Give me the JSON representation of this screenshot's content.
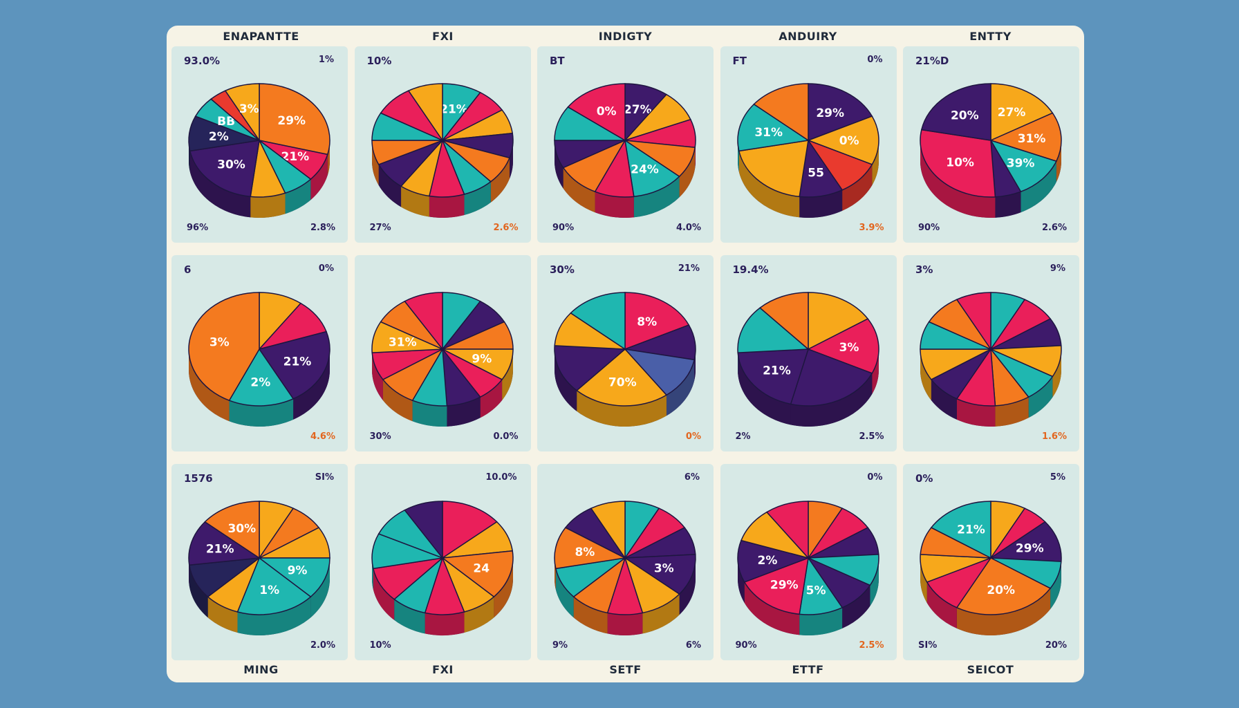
{
  "title_row": [
    "ENAPANTTE",
    "FXI",
    "INDIGTY",
    "ANDUIRY",
    "ENTTY"
  ],
  "footer_row": [
    "MING",
    "FXI",
    "SETF",
    "ETTF",
    "SEICOT"
  ],
  "colors": {
    "background": "#5d94bd",
    "board": "#f6f3e6",
    "panel": "#d7e9e6",
    "orange": "#f47a1f",
    "amber": "#f7a81b",
    "magenta": "#ea1f5a",
    "purple": "#3e1a6b",
    "teal": "#1fb7b0",
    "red": "#e93a2e",
    "navy": "#26245a"
  },
  "chart_data": [
    {
      "type": "pie",
      "title": "ENAPANTTE",
      "top_left": "93.0%",
      "top_right": "1%",
      "bottom_left": "96%",
      "bottom_right": "2.8%",
      "slices": [
        {
          "label": "29%",
          "value": 29,
          "color": "#f47a1f"
        },
        {
          "label": "21%",
          "value": 8,
          "color": "#ea1f5a"
        },
        {
          "label": "",
          "value": 7,
          "color": "#1fb7b0"
        },
        {
          "label": "",
          "value": 8,
          "color": "#f7a81b"
        },
        {
          "label": "30%",
          "value": 20,
          "color": "#3e1a6b"
        },
        {
          "label": "2%",
          "value": 10,
          "color": "#26245a"
        },
        {
          "label": "BB",
          "value": 6,
          "color": "#1fb7b0"
        },
        {
          "label": "",
          "value": 4,
          "color": "#e93a2e"
        },
        {
          "label": "3%",
          "value": 8,
          "color": "#f7a81b"
        }
      ]
    },
    {
      "type": "pie",
      "title": "FXI",
      "top_left": "10%",
      "top_right": "",
      "bottom_left": "27%",
      "bottom_right": "2.6%",
      "slices": [
        {
          "label": "21%",
          "value": 9,
          "color": "#1fb7b0"
        },
        {
          "label": "",
          "value": 7,
          "color": "#ea1f5a"
        },
        {
          "label": "",
          "value": 7,
          "color": "#f7a81b"
        },
        {
          "label": "",
          "value": 7,
          "color": "#3e1a6b"
        },
        {
          "label": "",
          "value": 8,
          "color": "#f47a1f"
        },
        {
          "label": "",
          "value": 7,
          "color": "#1fb7b0"
        },
        {
          "label": "",
          "value": 8,
          "color": "#ea1f5a"
        },
        {
          "label": "",
          "value": 7,
          "color": "#f7a81b"
        },
        {
          "label": "",
          "value": 8,
          "color": "#3e1a6b"
        },
        {
          "label": "",
          "value": 7,
          "color": "#f47a1f"
        },
        {
          "label": "",
          "value": 8,
          "color": "#1fb7b0"
        },
        {
          "label": "",
          "value": 9,
          "color": "#ea1f5a"
        },
        {
          "label": "",
          "value": 8,
          "color": "#f7a81b"
        }
      ]
    },
    {
      "type": "pie",
      "title": "INDIGTY",
      "top_left": "BT",
      "top_right": "",
      "bottom_left": "90%",
      "bottom_right": "4.0%",
      "slices": [
        {
          "label": "27%",
          "value": 10,
          "color": "#3e1a6b"
        },
        {
          "label": "",
          "value": 9,
          "color": "#f7a81b"
        },
        {
          "label": "",
          "value": 8,
          "color": "#ea1f5a"
        },
        {
          "label": "",
          "value": 9,
          "color": "#f47a1f"
        },
        {
          "label": "24%",
          "value": 12,
          "color": "#1fb7b0"
        },
        {
          "label": "",
          "value": 9,
          "color": "#ea1f5a"
        },
        {
          "label": "",
          "value": 10,
          "color": "#f47a1f"
        },
        {
          "label": "",
          "value": 8,
          "color": "#3e1a6b"
        },
        {
          "label": "",
          "value": 10,
          "color": "#1fb7b0"
        },
        {
          "label": "0%",
          "value": 15,
          "color": "#ea1f5a"
        }
      ]
    },
    {
      "type": "pie",
      "title": "ANDUIRY",
      "top_left": "FT",
      "top_right": "0%",
      "bottom_left": "",
      "bottom_right": "3.9%",
      "slices": [
        {
          "label": "29%",
          "value": 18,
          "color": "#3e1a6b"
        },
        {
          "label": "0%",
          "value": 14,
          "color": "#f7a81b"
        },
        {
          "label": "",
          "value": 10,
          "color": "#e93a2e"
        },
        {
          "label": "55",
          "value": 10,
          "color": "#3e1a6b"
        },
        {
          "label": "",
          "value": 20,
          "color": "#f7a81b"
        },
        {
          "label": "31%",
          "value": 14,
          "color": "#1fb7b0"
        },
        {
          "label": "",
          "value": 14,
          "color": "#f47a1f"
        }
      ]
    },
    {
      "type": "pie",
      "title": "ENTTY",
      "top_left": "21%D",
      "top_right": "",
      "bottom_left": "90%",
      "bottom_right": "2.6%",
      "slices": [
        {
          "label": "27%",
          "value": 17,
          "color": "#f7a81b"
        },
        {
          "label": "31%",
          "value": 14,
          "color": "#f47a1f"
        },
        {
          "label": "39%",
          "value": 12,
          "color": "#1fb7b0"
        },
        {
          "label": "",
          "value": 6,
          "color": "#3e1a6b"
        },
        {
          "label": "10%",
          "value": 29,
          "color": "#ea1f5a"
        },
        {
          "label": "20%",
          "value": 22,
          "color": "#3e1a6b"
        }
      ]
    },
    {
      "type": "pie",
      "title": "",
      "top_left": "6",
      "top_right": "0%",
      "bottom_left": "",
      "bottom_right": "4.6%",
      "slices": [
        {
          "label": "",
          "value": 10,
          "color": "#f7a81b"
        },
        {
          "label": "",
          "value": 10,
          "color": "#ea1f5a"
        },
        {
          "label": "21%",
          "value": 22,
          "color": "#3e1a6b"
        },
        {
          "label": "2%",
          "value": 15,
          "color": "#1fb7b0"
        },
        {
          "label": "3%",
          "value": 43,
          "color": "#f47a1f"
        }
      ]
    },
    {
      "type": "pie",
      "title": "",
      "top_left": "",
      "top_right": "",
      "bottom_left": "30%",
      "bottom_right": "0.0%",
      "slices": [
        {
          "label": "",
          "value": 9,
          "color": "#1fb7b0"
        },
        {
          "label": "",
          "value": 8,
          "color": "#3e1a6b"
        },
        {
          "label": "",
          "value": 8,
          "color": "#f47a1f"
        },
        {
          "label": "9%",
          "value": 9,
          "color": "#f7a81b"
        },
        {
          "label": "",
          "value": 7,
          "color": "#ea1f5a"
        },
        {
          "label": "",
          "value": 8,
          "color": "#3e1a6b"
        },
        {
          "label": "",
          "value": 8,
          "color": "#1fb7b0"
        },
        {
          "label": "",
          "value": 9,
          "color": "#f47a1f"
        },
        {
          "label": "",
          "value": 8,
          "color": "#ea1f5a"
        },
        {
          "label": "31%",
          "value": 9,
          "color": "#f7a81b"
        },
        {
          "label": "",
          "value": 8,
          "color": "#f47a1f"
        },
        {
          "label": "",
          "value": 9,
          "color": "#ea1f5a"
        }
      ]
    },
    {
      "type": "pie",
      "title": "",
      "top_left": "30%",
      "top_right": "21%",
      "bottom_left": "",
      "bottom_right": "0%",
      "slices": [
        {
          "label": "8%",
          "value": 18,
          "color": "#ea1f5a"
        },
        {
          "label": "",
          "value": 10,
          "color": "#3e1a6b"
        },
        {
          "label": "",
          "value": 12,
          "color": "#4a5fa8"
        },
        {
          "label": "70%",
          "value": 22,
          "color": "#f7a81b"
        },
        {
          "label": "",
          "value": 14,
          "color": "#3e1a6b"
        },
        {
          "label": "",
          "value": 10,
          "color": "#f7a81b"
        },
        {
          "label": "",
          "value": 14,
          "color": "#1fb7b0"
        }
      ]
    },
    {
      "type": "pie",
      "title": "",
      "top_left": "19.4%",
      "top_right": "",
      "bottom_left": "2%",
      "bottom_right": "2.5%",
      "slices": [
        {
          "label": "",
          "value": 16,
          "color": "#f7a81b"
        },
        {
          "label": "3%",
          "value": 16,
          "color": "#ea1f5a"
        },
        {
          "label": "",
          "value": 22,
          "color": "#3e1a6b"
        },
        {
          "label": "21%",
          "value": 20,
          "color": "#3e1a6b"
        },
        {
          "label": "",
          "value": 14,
          "color": "#1fb7b0"
        },
        {
          "label": "",
          "value": 12,
          "color": "#f47a1f"
        }
      ]
    },
    {
      "type": "pie",
      "title": "",
      "top_left": "3%",
      "top_right": "9%",
      "bottom_left": "",
      "bottom_right": "1.6%",
      "slices": [
        {
          "label": "",
          "value": 8,
          "color": "#1fb7b0"
        },
        {
          "label": "",
          "value": 8,
          "color": "#ea1f5a"
        },
        {
          "label": "",
          "value": 8,
          "color": "#3e1a6b"
        },
        {
          "label": "",
          "value": 9,
          "color": "#f7a81b"
        },
        {
          "label": "",
          "value": 8,
          "color": "#1fb7b0"
        },
        {
          "label": "",
          "value": 8,
          "color": "#f47a1f"
        },
        {
          "label": "",
          "value": 9,
          "color": "#ea1f5a"
        },
        {
          "label": "",
          "value": 8,
          "color": "#3e1a6b"
        },
        {
          "label": "",
          "value": 9,
          "color": "#f7a81b"
        },
        {
          "label": "",
          "value": 8,
          "color": "#1fb7b0"
        },
        {
          "label": "",
          "value": 9,
          "color": "#f47a1f"
        },
        {
          "label": "",
          "value": 8,
          "color": "#ea1f5a"
        }
      ]
    },
    {
      "type": "pie",
      "title": "MING",
      "top_left": "1576",
      "top_right": "SI%",
      "bottom_left": "",
      "bottom_right": "2.0%",
      "slices": [
        {
          "label": "",
          "value": 8,
          "color": "#f7a81b"
        },
        {
          "label": "",
          "value": 8,
          "color": "#f47a1f"
        },
        {
          "label": "",
          "value": 9,
          "color": "#f7a81b"
        },
        {
          "label": "9%",
          "value": 12,
          "color": "#1fb7b0"
        },
        {
          "label": "1%",
          "value": 18,
          "color": "#1fb7b0"
        },
        {
          "label": "",
          "value": 8,
          "color": "#f7a81b"
        },
        {
          "label": "",
          "value": 10,
          "color": "#26245a"
        },
        {
          "label": "21%",
          "value": 13,
          "color": "#3e1a6b"
        },
        {
          "label": "30%",
          "value": 14,
          "color": "#f47a1f"
        }
      ]
    },
    {
      "type": "pie",
      "title": "FXI",
      "top_left": "",
      "top_right": "10.0%",
      "bottom_left": "10%",
      "bottom_right": "",
      "slices": [
        {
          "label": "",
          "value": 14,
          "color": "#ea1f5a"
        },
        {
          "label": "",
          "value": 9,
          "color": "#f7a81b"
        },
        {
          "label": "24",
          "value": 14,
          "color": "#f47a1f"
        },
        {
          "label": "",
          "value": 8,
          "color": "#f7a81b"
        },
        {
          "label": "",
          "value": 9,
          "color": "#ea1f5a"
        },
        {
          "label": "",
          "value": 8,
          "color": "#1fb7b0"
        },
        {
          "label": "",
          "value": 10,
          "color": "#ea1f5a"
        },
        {
          "label": "",
          "value": 10,
          "color": "#1fb7b0"
        },
        {
          "label": "",
          "value": 9,
          "color": "#1fb7b0"
        },
        {
          "label": "",
          "value": 9,
          "color": "#3e1a6b"
        }
      ]
    },
    {
      "type": "pie",
      "title": "SETF",
      "top_left": "",
      "top_right": "6%",
      "bottom_left": "9%",
      "bottom_right": "6%",
      "slices": [
        {
          "label": "",
          "value": 8,
          "color": "#1fb7b0"
        },
        {
          "label": "",
          "value": 8,
          "color": "#ea1f5a"
        },
        {
          "label": "",
          "value": 8,
          "color": "#3e1a6b"
        },
        {
          "label": "3%",
          "value": 12,
          "color": "#3e1a6b"
        },
        {
          "label": "",
          "value": 10,
          "color": "#f7a81b"
        },
        {
          "label": "",
          "value": 8,
          "color": "#ea1f5a"
        },
        {
          "label": "",
          "value": 9,
          "color": "#f47a1f"
        },
        {
          "label": "",
          "value": 9,
          "color": "#1fb7b0"
        },
        {
          "label": "8%",
          "value": 12,
          "color": "#f47a1f"
        },
        {
          "label": "",
          "value": 8,
          "color": "#3e1a6b"
        },
        {
          "label": "",
          "value": 8,
          "color": "#f7a81b"
        }
      ]
    },
    {
      "type": "pie",
      "title": "ETTF",
      "top_left": "",
      "top_right": "0%",
      "bottom_left": "90%",
      "bottom_right": "2.5%",
      "slices": [
        {
          "label": "",
          "value": 8,
          "color": "#f47a1f"
        },
        {
          "label": "",
          "value": 8,
          "color": "#ea1f5a"
        },
        {
          "label": "",
          "value": 8,
          "color": "#3e1a6b"
        },
        {
          "label": "",
          "value": 9,
          "color": "#1fb7b0"
        },
        {
          "label": "",
          "value": 9,
          "color": "#3e1a6b"
        },
        {
          "label": "5%",
          "value": 10,
          "color": "#1fb7b0"
        },
        {
          "label": "29%",
          "value": 16,
          "color": "#ea1f5a"
        },
        {
          "label": "2%",
          "value": 12,
          "color": "#3e1a6b"
        },
        {
          "label": "",
          "value": 10,
          "color": "#f7a81b"
        },
        {
          "label": "",
          "value": 10,
          "color": "#ea1f5a"
        }
      ]
    },
    {
      "type": "pie",
      "title": "SEICOT",
      "top_left": "0%",
      "top_right": "5%",
      "bottom_left": "SI%",
      "bottom_right": "20%",
      "slices": [
        {
          "label": "",
          "value": 8,
          "color": "#f7a81b"
        },
        {
          "label": "",
          "value": 6,
          "color": "#ea1f5a"
        },
        {
          "label": "29%",
          "value": 12,
          "color": "#3e1a6b"
        },
        {
          "label": "",
          "value": 8,
          "color": "#1fb7b0"
        },
        {
          "label": "20%",
          "value": 24,
          "color": "#f47a1f"
        },
        {
          "label": "",
          "value": 10,
          "color": "#ea1f5a"
        },
        {
          "label": "",
          "value": 8,
          "color": "#f7a81b"
        },
        {
          "label": "",
          "value": 8,
          "color": "#f47a1f"
        },
        {
          "label": "21%",
          "value": 16,
          "color": "#1fb7b0"
        }
      ]
    }
  ]
}
